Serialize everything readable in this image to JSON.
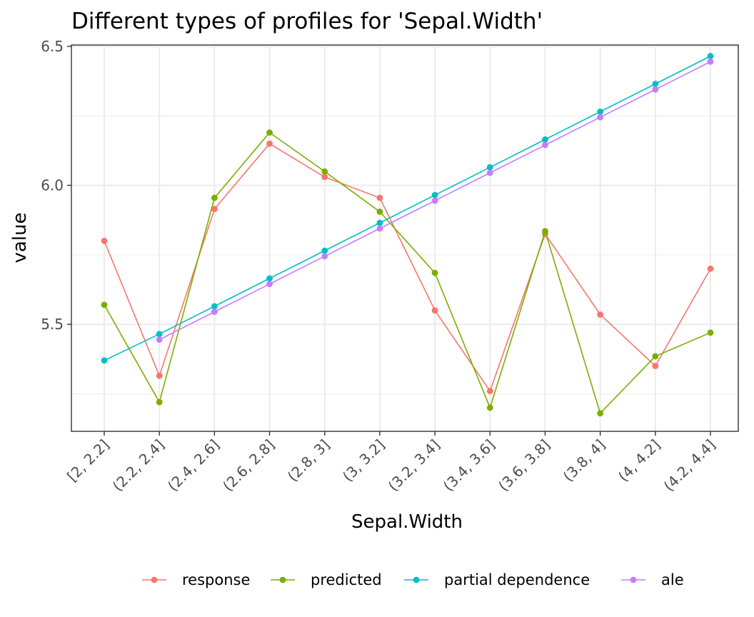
{
  "chart_data": {
    "type": "line",
    "title": "Different types of profiles for 'Sepal.Width'",
    "xlabel": "Sepal.Width",
    "ylabel": "value",
    "categories": [
      "[2, 2.2]",
      "(2.2, 2.4]",
      "(2.4, 2.6]",
      "(2.6, 2.8]",
      "(2.8, 3]",
      "(3, 3.2]",
      "(3.2, 3.4]",
      "(3.4, 3.6]",
      "(3.6, 3.8]",
      "(3.8, 4]",
      "(4, 4.2]",
      "(4.2, 4.4]"
    ],
    "ylim": [
      5.115,
      6.505
    ],
    "yticks": [
      5.5,
      6.0,
      6.5
    ],
    "ytick_labels": [
      "5.5",
      "6.0",
      "6.5"
    ],
    "yminor": [
      5.25,
      5.75,
      6.25
    ],
    "grid": true,
    "legend_position": "bottom",
    "series": [
      {
        "name": "response",
        "color": "#F8766D",
        "values": [
          5.8,
          5.315,
          5.915,
          6.15,
          6.03,
          5.955,
          5.55,
          5.26,
          5.825,
          5.535,
          5.35,
          5.7
        ]
      },
      {
        "name": "predicted",
        "color": "#7CAE00",
        "values": [
          5.57,
          5.22,
          5.955,
          6.19,
          6.05,
          5.905,
          5.685,
          5.2,
          5.835,
          5.18,
          5.385,
          5.47
        ]
      },
      {
        "name": "partial dependence",
        "color": "#00BFC4",
        "values": [
          5.37,
          5.465,
          5.565,
          5.665,
          5.765,
          5.865,
          5.965,
          6.065,
          6.165,
          6.265,
          6.365,
          6.465
        ]
      },
      {
        "name": "ale",
        "color": "#C77CFF",
        "values": [
          null,
          5.445,
          5.545,
          5.645,
          5.745,
          5.845,
          5.945,
          6.045,
          6.145,
          6.245,
          6.345,
          6.445
        ]
      }
    ]
  }
}
